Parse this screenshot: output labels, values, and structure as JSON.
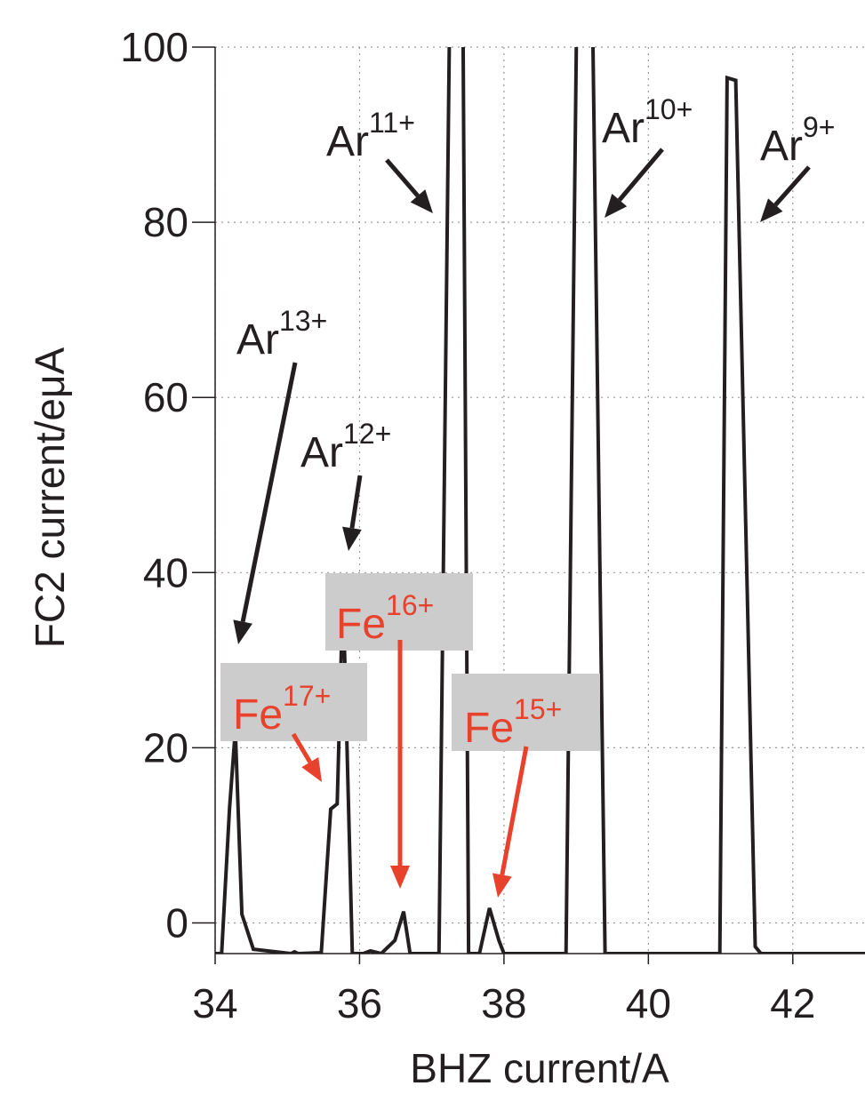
{
  "chart_data": {
    "type": "line",
    "xlabel": "BHZ current/A",
    "ylabel": "FC2 current/eμA",
    "x": [
      34,
      34.09,
      34.2,
      34.28,
      34.37,
      34.53,
      35.05,
      35.1,
      35.15,
      35.47,
      35.6,
      35.69,
      35.77,
      35.9,
      36.05,
      36.15,
      36.3,
      36.49,
      36.61,
      36.7,
      37.1,
      37.27,
      37.42,
      37.51,
      37.66,
      37.8,
      37.93,
      38,
      38.86,
      39.03,
      39.2,
      39.4,
      40.99,
      41.09,
      41.21,
      41.48,
      41.56,
      43
    ],
    "values": [
      -3.5,
      -3.5,
      13.1,
      22,
      1,
      -3,
      -3.5,
      -3.3,
      -3.5,
      -3.4,
      13,
      13.6,
      38,
      -3.5,
      -3.5,
      -3.2,
      -3.5,
      -2,
      1.3,
      -3.5,
      -3.5,
      120,
      120,
      -3.5,
      -3.5,
      1.7,
      -2,
      -3.5,
      -3.5,
      120,
      120,
      -3.5,
      -3.5,
      96.5,
      96.2,
      -2.7,
      -3.5,
      -3.5
    ],
    "color": "#231f20",
    "xlim": [
      34,
      43
    ],
    "ylim": [
      -3.5,
      100
    ],
    "xticks": [
      34,
      36,
      38,
      40,
      42
    ],
    "yticks": [
      0,
      20,
      40,
      60,
      80,
      100
    ],
    "grid": true,
    "annotations": [
      {
        "text": "Ar",
        "sup": "11+",
        "color": "#231f20"
      },
      {
        "text": "Ar",
        "sup": "10+",
        "color": "#231f20"
      },
      {
        "text": "Ar",
        "sup": "9+",
        "color": "#231f20"
      },
      {
        "text": "Ar",
        "sup": "13+",
        "color": "#231f20"
      },
      {
        "text": "Ar",
        "sup": "12+",
        "color": "#231f20"
      },
      {
        "text": "Fe",
        "sup": "17+",
        "color": "#e8412c"
      },
      {
        "text": "Fe",
        "sup": "16+",
        "color": "#e8412c"
      },
      {
        "text": "Fe",
        "sup": "15+",
        "color": "#e8412c"
      }
    ]
  }
}
